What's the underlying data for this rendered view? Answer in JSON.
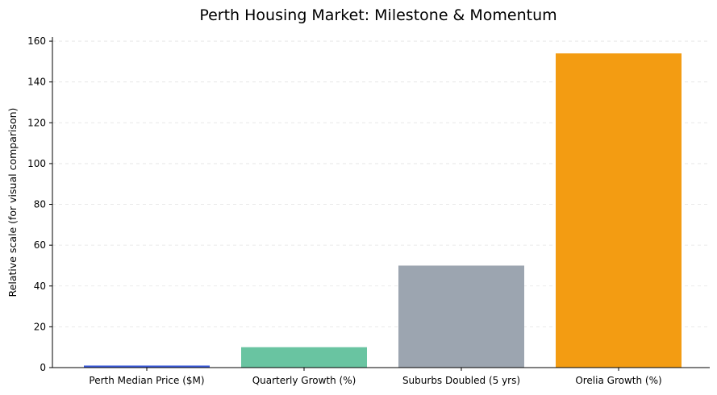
{
  "chart_data": {
    "type": "bar",
    "title": "Perth Housing Market: Milestone & Momentum",
    "xlabel": "",
    "ylabel": "Relative scale (for visual comparison)",
    "categories": [
      "Perth Median Price ($M)",
      "Quarterly Growth (%)",
      "Suburbs Doubled (5 yrs)",
      "Orelia Growth (%)"
    ],
    "values": [
      1.0,
      10,
      50,
      154
    ],
    "colors": [
      "#3b5bdb",
      "#69c4a1",
      "#9ca5b0",
      "#f39c12"
    ],
    "ylim": [
      0,
      162
    ],
    "yticks": [
      0,
      20,
      40,
      60,
      80,
      100,
      120,
      140,
      160
    ],
    "grid": true
  }
}
